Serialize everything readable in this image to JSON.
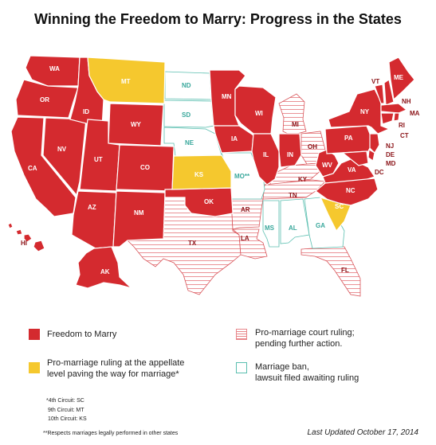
{
  "title": "Winning the Freedom to Marry: Progress in the States",
  "colors": {
    "freedom": "#d42a2f",
    "appellate": "#f5c82e",
    "court_ruling_stripe": "#e8868a",
    "ban_outline": "#5bbfb0"
  },
  "states": {
    "WA": "WA",
    "OR": "OR",
    "CA": "CA",
    "NV": "NV",
    "ID": "ID",
    "MT": "MT",
    "WY": "WY",
    "UT": "UT",
    "AZ": "AZ",
    "CO": "CO",
    "NM": "NM",
    "ND": "ND",
    "SD": "SD",
    "NE": "NE",
    "KS": "KS",
    "OK": "OK",
    "TX": "TX",
    "MN": "MN",
    "IA": "IA",
    "MO": "MO**",
    "AR": "AR",
    "LA": "LA",
    "WI": "WI",
    "IL": "IL",
    "MI": "MI",
    "IN": "IN",
    "OH": "OH",
    "KY": "KY",
    "TN": "TN",
    "MS": "MS",
    "AL": "AL",
    "GA": "GA",
    "FL": "FL",
    "SC": "SC",
    "NC": "NC",
    "VA": "VA",
    "WV": "WV",
    "PA": "PA",
    "NY": "NY",
    "VT": "VT",
    "NH": "NH",
    "ME": "ME",
    "MA": "MA",
    "CT": "CT",
    "RI": "RI",
    "NJ": "NJ",
    "DE": "DE",
    "MD": "MD",
    "DC": "DC",
    "HI": "HI",
    "AK": "AK"
  },
  "legend": {
    "freedom": "Freedom to Marry",
    "appellate_line1": "Pro-marriage ruling at the appellate",
    "appellate_line2": "level paving the way for marriage*",
    "court_line1": "Pro-marriage court ruling;",
    "court_line2": "pending further action.",
    "ban_line1": "Marriage ban,",
    "ban_line2": "lawsuit filed awaiting ruling"
  },
  "notes": {
    "circuit_4": "*4th Circuit: SC",
    "circuit_9": "9th Circuit: MT",
    "circuit_10": "10th Circuit: KS",
    "respects": "**Respects marriages legally performed in other states"
  },
  "last_updated": "Last Updated October 17, 2014"
}
